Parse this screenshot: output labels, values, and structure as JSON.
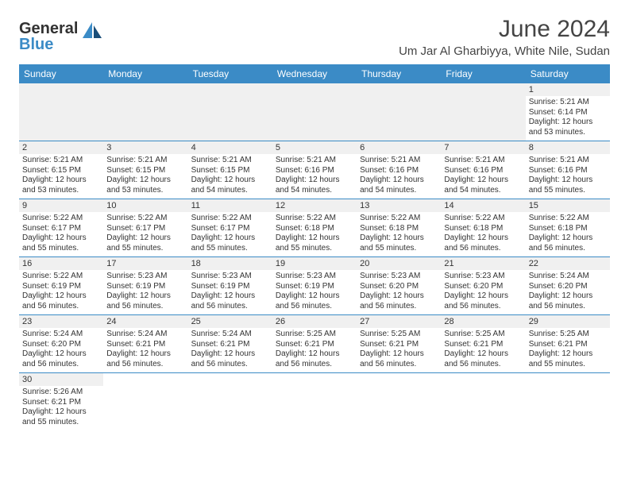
{
  "logo": {
    "text1": "General",
    "text2": "Blue"
  },
  "title": "June 2024",
  "location": "Um Jar Al Gharbiyya, White Nile, Sudan",
  "colors": {
    "header_bg": "#3b8bc6",
    "header_fg": "#ffffff",
    "line": "#3b8bc6",
    "daynum_bg": "#f0f0f0",
    "text": "#333333",
    "title_color": "#444444"
  },
  "typography": {
    "title_fontsize": 30,
    "location_fontsize": 15,
    "header_fontsize": 12,
    "cell_fontsize": 10
  },
  "columns": [
    "Sunday",
    "Monday",
    "Tuesday",
    "Wednesday",
    "Thursday",
    "Friday",
    "Saturday"
  ],
  "weeks": [
    [
      null,
      null,
      null,
      null,
      null,
      null,
      {
        "day": "1",
        "sunrise": "Sunrise: 5:21 AM",
        "sunset": "Sunset: 6:14 PM",
        "daylight": "Daylight: 12 hours and 53 minutes."
      }
    ],
    [
      {
        "day": "2",
        "sunrise": "Sunrise: 5:21 AM",
        "sunset": "Sunset: 6:15 PM",
        "daylight": "Daylight: 12 hours and 53 minutes."
      },
      {
        "day": "3",
        "sunrise": "Sunrise: 5:21 AM",
        "sunset": "Sunset: 6:15 PM",
        "daylight": "Daylight: 12 hours and 53 minutes."
      },
      {
        "day": "4",
        "sunrise": "Sunrise: 5:21 AM",
        "sunset": "Sunset: 6:15 PM",
        "daylight": "Daylight: 12 hours and 54 minutes."
      },
      {
        "day": "5",
        "sunrise": "Sunrise: 5:21 AM",
        "sunset": "Sunset: 6:16 PM",
        "daylight": "Daylight: 12 hours and 54 minutes."
      },
      {
        "day": "6",
        "sunrise": "Sunrise: 5:21 AM",
        "sunset": "Sunset: 6:16 PM",
        "daylight": "Daylight: 12 hours and 54 minutes."
      },
      {
        "day": "7",
        "sunrise": "Sunrise: 5:21 AM",
        "sunset": "Sunset: 6:16 PM",
        "daylight": "Daylight: 12 hours and 54 minutes."
      },
      {
        "day": "8",
        "sunrise": "Sunrise: 5:21 AM",
        "sunset": "Sunset: 6:16 PM",
        "daylight": "Daylight: 12 hours and 55 minutes."
      }
    ],
    [
      {
        "day": "9",
        "sunrise": "Sunrise: 5:22 AM",
        "sunset": "Sunset: 6:17 PM",
        "daylight": "Daylight: 12 hours and 55 minutes."
      },
      {
        "day": "10",
        "sunrise": "Sunrise: 5:22 AM",
        "sunset": "Sunset: 6:17 PM",
        "daylight": "Daylight: 12 hours and 55 minutes."
      },
      {
        "day": "11",
        "sunrise": "Sunrise: 5:22 AM",
        "sunset": "Sunset: 6:17 PM",
        "daylight": "Daylight: 12 hours and 55 minutes."
      },
      {
        "day": "12",
        "sunrise": "Sunrise: 5:22 AM",
        "sunset": "Sunset: 6:18 PM",
        "daylight": "Daylight: 12 hours and 55 minutes."
      },
      {
        "day": "13",
        "sunrise": "Sunrise: 5:22 AM",
        "sunset": "Sunset: 6:18 PM",
        "daylight": "Daylight: 12 hours and 55 minutes."
      },
      {
        "day": "14",
        "sunrise": "Sunrise: 5:22 AM",
        "sunset": "Sunset: 6:18 PM",
        "daylight": "Daylight: 12 hours and 56 minutes."
      },
      {
        "day": "15",
        "sunrise": "Sunrise: 5:22 AM",
        "sunset": "Sunset: 6:18 PM",
        "daylight": "Daylight: 12 hours and 56 minutes."
      }
    ],
    [
      {
        "day": "16",
        "sunrise": "Sunrise: 5:22 AM",
        "sunset": "Sunset: 6:19 PM",
        "daylight": "Daylight: 12 hours and 56 minutes."
      },
      {
        "day": "17",
        "sunrise": "Sunrise: 5:23 AM",
        "sunset": "Sunset: 6:19 PM",
        "daylight": "Daylight: 12 hours and 56 minutes."
      },
      {
        "day": "18",
        "sunrise": "Sunrise: 5:23 AM",
        "sunset": "Sunset: 6:19 PM",
        "daylight": "Daylight: 12 hours and 56 minutes."
      },
      {
        "day": "19",
        "sunrise": "Sunrise: 5:23 AM",
        "sunset": "Sunset: 6:19 PM",
        "daylight": "Daylight: 12 hours and 56 minutes."
      },
      {
        "day": "20",
        "sunrise": "Sunrise: 5:23 AM",
        "sunset": "Sunset: 6:20 PM",
        "daylight": "Daylight: 12 hours and 56 minutes."
      },
      {
        "day": "21",
        "sunrise": "Sunrise: 5:23 AM",
        "sunset": "Sunset: 6:20 PM",
        "daylight": "Daylight: 12 hours and 56 minutes."
      },
      {
        "day": "22",
        "sunrise": "Sunrise: 5:24 AM",
        "sunset": "Sunset: 6:20 PM",
        "daylight": "Daylight: 12 hours and 56 minutes."
      }
    ],
    [
      {
        "day": "23",
        "sunrise": "Sunrise: 5:24 AM",
        "sunset": "Sunset: 6:20 PM",
        "daylight": "Daylight: 12 hours and 56 minutes."
      },
      {
        "day": "24",
        "sunrise": "Sunrise: 5:24 AM",
        "sunset": "Sunset: 6:21 PM",
        "daylight": "Daylight: 12 hours and 56 minutes."
      },
      {
        "day": "25",
        "sunrise": "Sunrise: 5:24 AM",
        "sunset": "Sunset: 6:21 PM",
        "daylight": "Daylight: 12 hours and 56 minutes."
      },
      {
        "day": "26",
        "sunrise": "Sunrise: 5:25 AM",
        "sunset": "Sunset: 6:21 PM",
        "daylight": "Daylight: 12 hours and 56 minutes."
      },
      {
        "day": "27",
        "sunrise": "Sunrise: 5:25 AM",
        "sunset": "Sunset: 6:21 PM",
        "daylight": "Daylight: 12 hours and 56 minutes."
      },
      {
        "day": "28",
        "sunrise": "Sunrise: 5:25 AM",
        "sunset": "Sunset: 6:21 PM",
        "daylight": "Daylight: 12 hours and 56 minutes."
      },
      {
        "day": "29",
        "sunrise": "Sunrise: 5:25 AM",
        "sunset": "Sunset: 6:21 PM",
        "daylight": "Daylight: 12 hours and 55 minutes."
      }
    ],
    [
      {
        "day": "30",
        "sunrise": "Sunrise: 5:26 AM",
        "sunset": "Sunset: 6:21 PM",
        "daylight": "Daylight: 12 hours and 55 minutes."
      },
      null,
      null,
      null,
      null,
      null,
      null
    ]
  ]
}
